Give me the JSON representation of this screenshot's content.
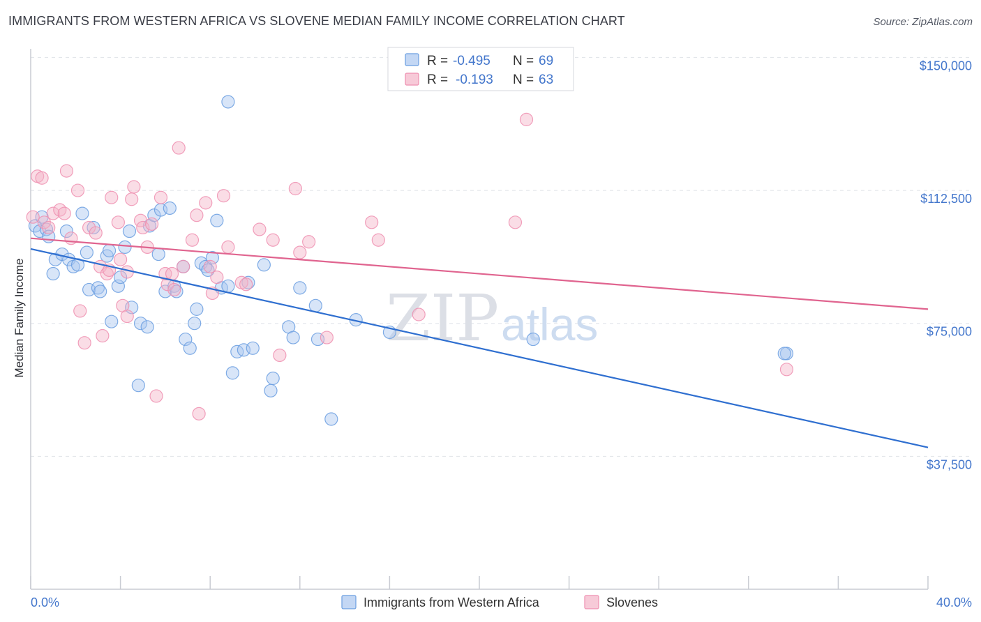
{
  "header": {
    "title": "IMMIGRANTS FROM WESTERN AFRICA VS SLOVENE MEDIAN FAMILY INCOME CORRELATION CHART",
    "source": "Source: ZipAtlas.com"
  },
  "watermark": {
    "zip": "ZIP",
    "atlas": "atlas"
  },
  "stats_legend": {
    "rows": [
      {
        "r_label": "R =",
        "r_value": "-0.495",
        "n_label": "N =",
        "n_value": "69",
        "color": "#a9c6ef"
      },
      {
        "r_label": "R =",
        "r_value": "-0.193",
        "n_label": "N =",
        "n_value": "63",
        "color": "#f4b3c8"
      }
    ]
  },
  "bottom_legend": {
    "items": [
      {
        "label": "Immigrants from Western Africa",
        "color": "#a9c6ef"
      },
      {
        "label": "Slovenes",
        "color": "#f4b3c8"
      }
    ]
  },
  "chart_data": {
    "type": "scatter",
    "title": "IMMIGRANTS FROM WESTERN AFRICA VS SLOVENE MEDIAN FAMILY INCOME CORRELATION CHART",
    "xlabel": "",
    "ylabel": "Median Family Income",
    "xlim": [
      0,
      40
    ],
    "ylim": [
      0,
      155000
    ],
    "x_tick_labels": [
      "0.0%",
      "40.0%"
    ],
    "y_ticks": [
      37500,
      75000,
      112500,
      150000
    ],
    "y_tick_labels": [
      "$37,500",
      "$75,000",
      "$112,500",
      "$150,000"
    ],
    "grid": true,
    "legend_position": "top-center",
    "series": [
      {
        "name": "Immigrants from Western Africa",
        "color": "#6a9ee0",
        "fill": "#a9c6ef",
        "trend": {
          "x": [
            0,
            40
          ],
          "y": [
            96000,
            40000
          ],
          "color": "#2f6fd0"
        },
        "points": [
          [
            0.2,
            102500
          ],
          [
            0.4,
            101000
          ],
          [
            0.5,
            105000
          ],
          [
            0.7,
            101500
          ],
          [
            0.8,
            99500
          ],
          [
            1.0,
            89000
          ],
          [
            1.1,
            93000
          ],
          [
            1.4,
            94500
          ],
          [
            1.6,
            101000
          ],
          [
            1.7,
            93000
          ],
          [
            1.9,
            91000
          ],
          [
            2.1,
            91500
          ],
          [
            2.3,
            106000
          ],
          [
            2.5,
            95000
          ],
          [
            2.6,
            84500
          ],
          [
            2.8,
            102000
          ],
          [
            3.0,
            85000
          ],
          [
            3.1,
            84000
          ],
          [
            3.4,
            94000
          ],
          [
            3.5,
            95500
          ],
          [
            3.6,
            75500
          ],
          [
            3.9,
            85500
          ],
          [
            4.0,
            88000
          ],
          [
            4.2,
            96500
          ],
          [
            4.4,
            101000
          ],
          [
            4.5,
            79500
          ],
          [
            4.8,
            57500
          ],
          [
            4.9,
            75000
          ],
          [
            5.2,
            74000
          ],
          [
            5.3,
            102500
          ],
          [
            5.5,
            105500
          ],
          [
            5.7,
            94500
          ],
          [
            5.8,
            107000
          ],
          [
            6.0,
            84000
          ],
          [
            6.2,
            107500
          ],
          [
            6.4,
            85500
          ],
          [
            6.5,
            84000
          ],
          [
            6.8,
            91000
          ],
          [
            6.9,
            70500
          ],
          [
            7.1,
            68000
          ],
          [
            7.3,
            75000
          ],
          [
            7.4,
            79000
          ],
          [
            7.6,
            92000
          ],
          [
            7.8,
            91000
          ],
          [
            7.9,
            90000
          ],
          [
            8.1,
            93500
          ],
          [
            8.3,
            104000
          ],
          [
            8.5,
            85000
          ],
          [
            8.8,
            85500
          ],
          [
            8.8,
            137500
          ],
          [
            9.0,
            61000
          ],
          [
            9.2,
            67000
          ],
          [
            9.5,
            67500
          ],
          [
            9.7,
            86500
          ],
          [
            9.9,
            68000
          ],
          [
            10.4,
            91500
          ],
          [
            10.7,
            56000
          ],
          [
            10.8,
            59500
          ],
          [
            11.5,
            74000
          ],
          [
            11.7,
            71000
          ],
          [
            12.0,
            85000
          ],
          [
            12.7,
            80000
          ],
          [
            12.8,
            70500
          ],
          [
            13.4,
            48000
          ],
          [
            14.5,
            76000
          ],
          [
            16.0,
            72500
          ],
          [
            22.4,
            70500
          ],
          [
            33.7,
            66500
          ],
          [
            33.6,
            66500
          ]
        ]
      },
      {
        "name": "Slovenes",
        "color": "#ee8fb0",
        "fill": "#f4b3c8",
        "trend": {
          "x": [
            0,
            40
          ],
          "y": [
            99000,
            79000
          ],
          "color": "#e0648f"
        },
        "points": [
          [
            0.1,
            105000
          ],
          [
            0.3,
            116500
          ],
          [
            0.5,
            116000
          ],
          [
            0.6,
            103500
          ],
          [
            0.8,
            102000
          ],
          [
            1.0,
            106000
          ],
          [
            1.3,
            107000
          ],
          [
            1.5,
            106000
          ],
          [
            1.6,
            118000
          ],
          [
            1.8,
            99000
          ],
          [
            2.1,
            112500
          ],
          [
            2.2,
            78500
          ],
          [
            2.4,
            69500
          ],
          [
            2.6,
            102000
          ],
          [
            2.9,
            100500
          ],
          [
            3.1,
            91000
          ],
          [
            3.2,
            71500
          ],
          [
            3.4,
            89000
          ],
          [
            3.5,
            90000
          ],
          [
            3.6,
            110500
          ],
          [
            3.9,
            103500
          ],
          [
            4.0,
            93000
          ],
          [
            4.1,
            80000
          ],
          [
            4.3,
            77000
          ],
          [
            4.5,
            110000
          ],
          [
            4.6,
            113500
          ],
          [
            4.9,
            104000
          ],
          [
            5.0,
            102000
          ],
          [
            5.2,
            96500
          ],
          [
            5.4,
            103000
          ],
          [
            5.6,
            54500
          ],
          [
            5.8,
            110500
          ],
          [
            6.0,
            89000
          ],
          [
            6.1,
            86000
          ],
          [
            6.3,
            89000
          ],
          [
            6.4,
            84500
          ],
          [
            6.6,
            124500
          ],
          [
            6.8,
            91000
          ],
          [
            7.2,
            98500
          ],
          [
            7.4,
            105500
          ],
          [
            7.5,
            49500
          ],
          [
            7.8,
            109000
          ],
          [
            8.0,
            91000
          ],
          [
            8.1,
            83500
          ],
          [
            8.3,
            88000
          ],
          [
            8.6,
            111000
          ],
          [
            8.8,
            96500
          ],
          [
            9.4,
            86500
          ],
          [
            9.6,
            86000
          ],
          [
            10.2,
            101500
          ],
          [
            10.8,
            98500
          ],
          [
            11.1,
            66000
          ],
          [
            11.8,
            113000
          ],
          [
            12.0,
            95000
          ],
          [
            12.4,
            98000
          ],
          [
            13.2,
            71000
          ],
          [
            15.2,
            103500
          ],
          [
            15.5,
            98500
          ],
          [
            17.3,
            77500
          ],
          [
            21.6,
            103500
          ],
          [
            22.1,
            132500
          ],
          [
            33.7,
            62000
          ],
          [
            4.3,
            89500
          ]
        ]
      }
    ]
  }
}
